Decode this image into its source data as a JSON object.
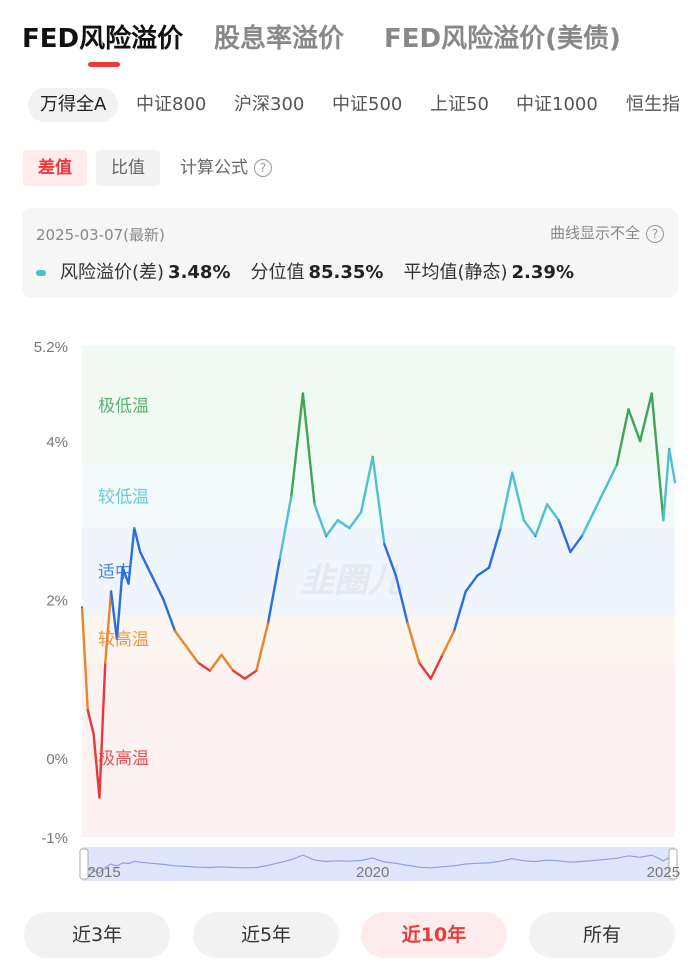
{
  "top_tabs": [
    "FED风险溢价",
    "股息率溢价",
    "FED风险溢价(美债)"
  ],
  "index_tabs": [
    "万得全A",
    "中证800",
    "沪深300",
    "中证500",
    "上证50",
    "中证1000",
    "恒生指"
  ],
  "mode": {
    "diff": "差值",
    "ratio": "比值",
    "formula": "计算公式"
  },
  "info": {
    "date": "2025-03-07(最新)",
    "incomplete": "曲线显示不全",
    "risk_label": "风险溢价(差)",
    "risk_value": "3.48%",
    "pct_label": "分位值",
    "pct_value": "85.35%",
    "avg_label": "平均值(静态)",
    "avg_value": "2.39%"
  },
  "watermark": "韭圈儿",
  "ranges": [
    "近3年",
    "近5年",
    "近10年",
    "所有"
  ],
  "colors": {
    "very_low": "#3fa55a",
    "low": "#52bfd1",
    "mid": "#2b6fde",
    "high": "#e8862e",
    "very_high": "#e23b3b",
    "accent": "#e83b3b"
  },
  "chart_data": {
    "type": "line",
    "y_ticks": [
      "5.2%",
      "4%",
      "2%",
      "0%",
      "-1%"
    ],
    "ylim": [
      -1,
      5.2
    ],
    "x_ticks": [
      "2015",
      "2020",
      "2025"
    ],
    "zones": [
      {
        "label": "极低温",
        "from": 3.7,
        "to": 5.2,
        "color": "#3fa55a"
      },
      {
        "label": "较低温",
        "from": 2.9,
        "to": 3.7,
        "color": "#52bfd1"
      },
      {
        "label": "适中",
        "from": 1.8,
        "to": 2.9,
        "color": "#2b6fde"
      },
      {
        "label": "较高温",
        "from": 1.2,
        "to": 1.8,
        "color": "#e8862e"
      },
      {
        "label": "极高温",
        "from": -1,
        "to": 1.2,
        "color": "#e23b3b"
      }
    ],
    "x": [
      2015.0,
      2015.1,
      2015.2,
      2015.3,
      2015.4,
      2015.5,
      2015.6,
      2015.7,
      2015.8,
      2015.9,
      2016.0,
      2016.2,
      2016.4,
      2016.6,
      2016.8,
      2017.0,
      2017.2,
      2017.4,
      2017.6,
      2017.8,
      2018.0,
      2018.2,
      2018.4,
      2018.6,
      2018.8,
      2019.0,
      2019.2,
      2019.4,
      2019.6,
      2019.8,
      2020.0,
      2020.2,
      2020.4,
      2020.6,
      2020.8,
      2021.0,
      2021.2,
      2021.4,
      2021.6,
      2021.8,
      2022.0,
      2022.2,
      2022.4,
      2022.6,
      2022.8,
      2023.0,
      2023.2,
      2023.4,
      2023.6,
      2023.8,
      2024.0,
      2024.2,
      2024.4,
      2024.6,
      2024.8,
      2025.0,
      2025.1,
      2025.2
    ],
    "values": [
      1.9,
      0.6,
      0.3,
      -0.5,
      1.2,
      2.1,
      1.5,
      2.4,
      2.2,
      2.9,
      2.6,
      2.3,
      2.0,
      1.6,
      1.4,
      1.2,
      1.1,
      1.3,
      1.1,
      1.0,
      1.1,
      1.7,
      2.5,
      3.3,
      4.6,
      3.2,
      2.8,
      3.0,
      2.9,
      3.1,
      3.8,
      2.7,
      2.3,
      1.7,
      1.2,
      1.0,
      1.3,
      1.6,
      2.1,
      2.3,
      2.4,
      2.9,
      3.6,
      3.0,
      2.8,
      3.2,
      3.0,
      2.6,
      2.8,
      3.1,
      3.4,
      3.7,
      4.4,
      4.0,
      4.6,
      3.0,
      3.9,
      3.48
    ]
  },
  "minimap_ticks": [
    "2015",
    "2020",
    "2025"
  ]
}
